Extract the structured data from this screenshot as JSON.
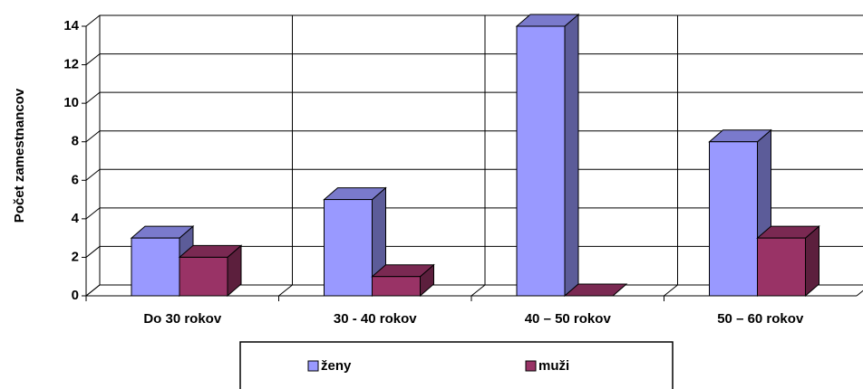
{
  "chart_data": {
    "type": "bar3d",
    "ylabel": "Počet zamestnancov",
    "categories": [
      "Do 30 rokov",
      "30 - 40  rokov",
      "40 – 50 rokov",
      "50 – 60 rokov"
    ],
    "series": [
      {
        "name": "ženy",
        "color": "#9999ff",
        "values": [
          3,
          5,
          14,
          8
        ]
      },
      {
        "name": "muži",
        "color": "#993366",
        "values": [
          2,
          1,
          0,
          3
        ]
      }
    ],
    "ylim": [
      0,
      14
    ],
    "yticks": [
      0,
      2,
      4,
      6,
      8,
      10,
      12,
      14
    ],
    "grid": true
  }
}
